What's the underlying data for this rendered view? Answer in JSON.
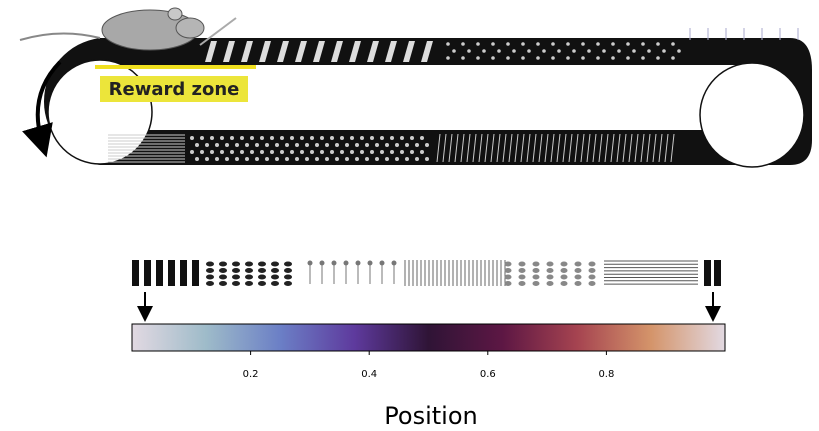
{
  "belt": {
    "label": "Reward zone"
  },
  "colorbar": {
    "colormap": "twilight",
    "colors": [
      "#e2d9e2",
      "#9ebbc9",
      "#6b7fc6",
      "#5e3a9d",
      "#2f1436",
      "#5d1744",
      "#a54350",
      "#d4946a",
      "#e2d9e2"
    ],
    "xlim": [
      0,
      1
    ],
    "xticks": [
      0.2,
      0.4,
      0.6,
      0.8
    ],
    "xlabel": "Position"
  }
}
